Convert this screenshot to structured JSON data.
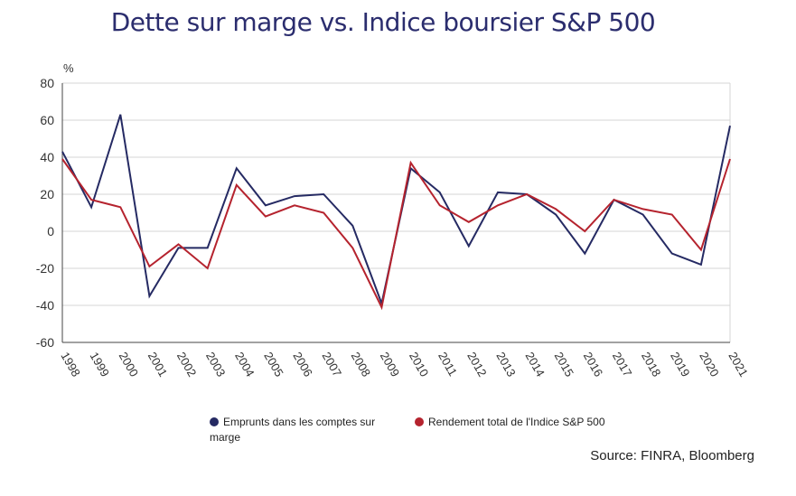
{
  "title": "Dette sur marge vs. Indice boursier S&P 500",
  "source": "Source: FINRA, Bloomberg",
  "colors": {
    "series1": "#252a63",
    "series2": "#b5232e",
    "grid": "#d4d4d4",
    "axis": "#444444"
  },
  "chart_data": {
    "type": "line",
    "title": "Dette sur marge vs. Indice boursier S&P 500",
    "ylabel": "%",
    "xlabel": "",
    "ylim": [
      -60,
      80
    ],
    "yticks": [
      80,
      60,
      40,
      20,
      0,
      -20,
      -40,
      -60
    ],
    "grid": true,
    "legend_position": "bottom",
    "x": [
      "1998",
      "1999",
      "2000",
      "2001",
      "2002",
      "2003",
      "2004",
      "2005",
      "2006",
      "2007",
      "2008",
      "2009",
      "2010",
      "2011",
      "2012",
      "2013",
      "2014",
      "2015",
      "2016",
      "2017",
      "2018",
      "2019",
      "2020",
      "2021"
    ],
    "series": [
      {
        "name": "Emprunts dans les comptes sur marge",
        "values": [
          43,
          13,
          63,
          -35,
          -9,
          -9,
          34,
          14,
          19,
          20,
          3,
          -39,
          34,
          21,
          -8,
          21,
          20,
          9,
          -12,
          17,
          9,
          -12,
          -18,
          57
        ]
      },
      {
        "name": "Rendement total de l'Indice S&P 500",
        "values": [
          39,
          17,
          13,
          -19,
          -7,
          -20,
          25,
          8,
          14,
          10,
          -9,
          -41,
          37,
          14,
          5,
          14,
          20,
          12,
          0,
          17,
          12,
          9,
          -10,
          39
        ]
      }
    ]
  }
}
